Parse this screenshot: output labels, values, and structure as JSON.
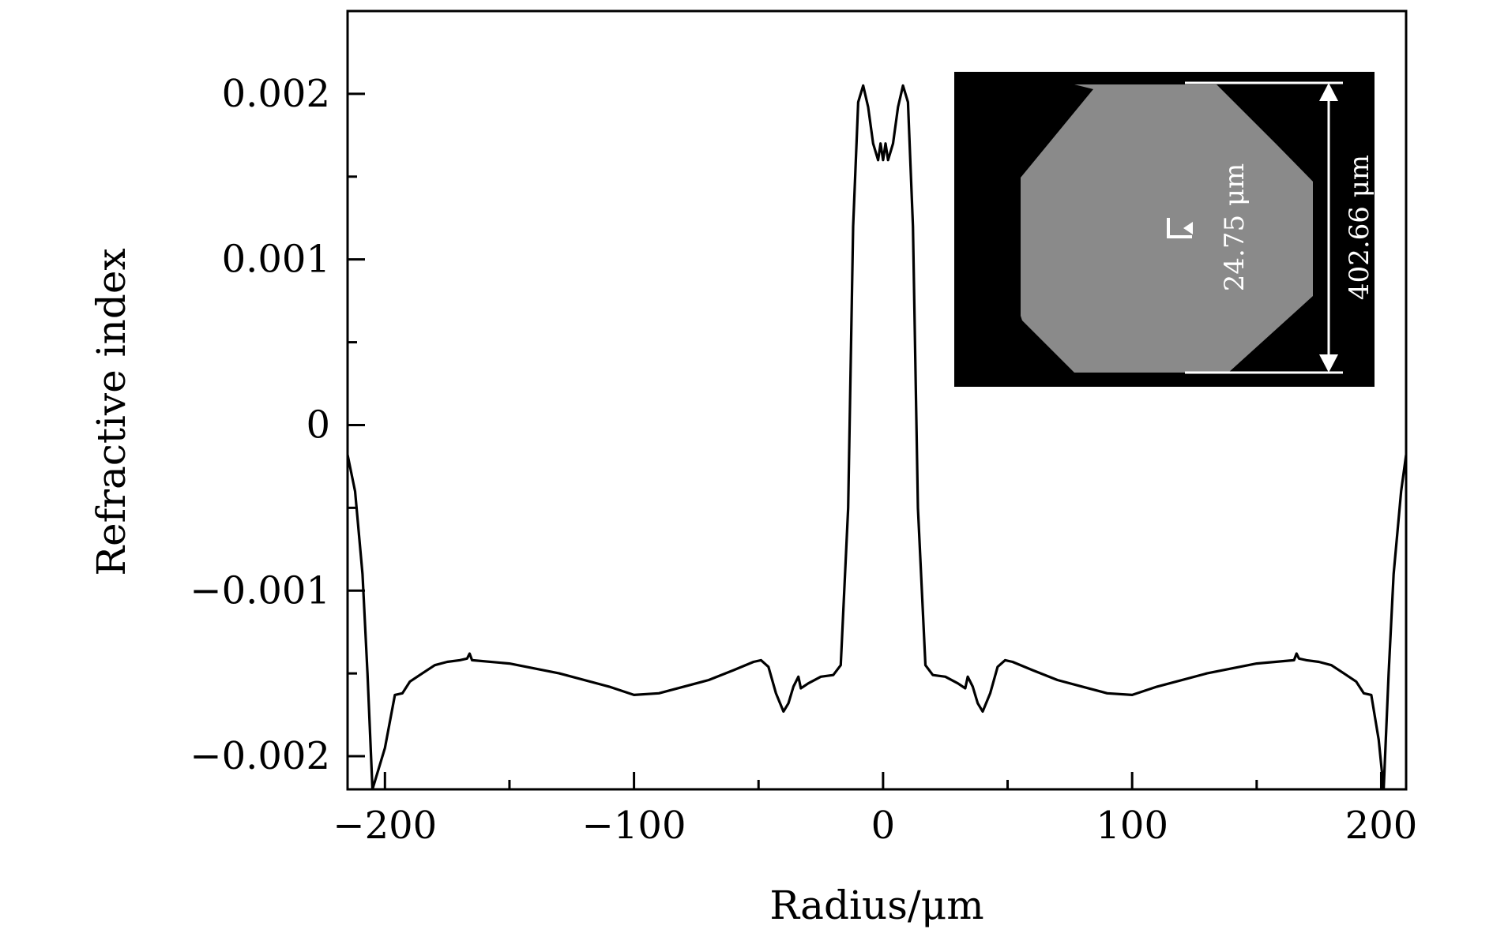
{
  "chart_data": {
    "type": "line",
    "title": "",
    "xlabel": "Radius/μm",
    "ylabel": "Refractive index",
    "xlim": [
      -215,
      210
    ],
    "ylim": [
      -0.0022,
      0.0025
    ],
    "x_ticks": [
      {
        "value": -200,
        "label": "−200"
      },
      {
        "value": -100,
        "label": "−100"
      },
      {
        "value": 0,
        "label": "0"
      },
      {
        "value": 100,
        "label": "100"
      },
      {
        "value": 200,
        "label": "200"
      }
    ],
    "y_ticks": [
      {
        "value": -0.002,
        "label": "−0.002"
      },
      {
        "value": -0.001,
        "label": "−0.001"
      },
      {
        "value": 0,
        "label": "0"
      },
      {
        "value": 0.001,
        "label": "0.001"
      },
      {
        "value": 0.002,
        "label": "0.002"
      }
    ],
    "grid": false,
    "series": [
      {
        "color": "#000000",
        "points": [
          [
            -215,
            -0.00018
          ],
          [
            -212,
            -0.0004
          ],
          [
            -209,
            -0.0009
          ],
          [
            -207,
            -0.0015
          ],
          [
            -205,
            -0.0022
          ],
          [
            -200,
            -0.00195
          ],
          [
            -196,
            -0.00163
          ],
          [
            -193,
            -0.00162
          ],
          [
            -190,
            -0.00155
          ],
          [
            -185,
            -0.0015
          ],
          [
            -180,
            -0.00145
          ],
          [
            -175,
            -0.00143
          ],
          [
            -170,
            -0.00142
          ],
          [
            -167,
            -0.00141
          ],
          [
            -166,
            -0.00138
          ],
          [
            -165,
            -0.00142
          ],
          [
            -150,
            -0.00144
          ],
          [
            -130,
            -0.0015
          ],
          [
            -110,
            -0.00158
          ],
          [
            -100,
            -0.00163
          ],
          [
            -90,
            -0.00162
          ],
          [
            -80,
            -0.00158
          ],
          [
            -70,
            -0.00154
          ],
          [
            -60,
            -0.00148
          ],
          [
            -52,
            -0.00143
          ],
          [
            -49,
            -0.00142
          ],
          [
            -46,
            -0.00146
          ],
          [
            -43,
            -0.00162
          ],
          [
            -40,
            -0.00173
          ],
          [
            -38,
            -0.00168
          ],
          [
            -36,
            -0.00158
          ],
          [
            -34,
            -0.00152
          ],
          [
            -33,
            -0.00159
          ],
          [
            -30,
            -0.00156
          ],
          [
            -25,
            -0.00152
          ],
          [
            -20,
            -0.00151
          ],
          [
            -17,
            -0.00145
          ],
          [
            -14,
            -0.0005
          ],
          [
            -12,
            0.0012
          ],
          [
            -10,
            0.00195
          ],
          [
            -8,
            0.00205
          ],
          [
            -6,
            0.00192
          ],
          [
            -4,
            0.0017
          ],
          [
            -2,
            0.0016
          ],
          [
            -1,
            0.0017
          ],
          [
            0,
            0.0016
          ],
          [
            1,
            0.0017
          ],
          [
            2,
            0.0016
          ],
          [
            4,
            0.0017
          ],
          [
            6,
            0.00192
          ],
          [
            8,
            0.00205
          ],
          [
            10,
            0.00195
          ],
          [
            12,
            0.0012
          ],
          [
            14,
            -0.0005
          ],
          [
            17,
            -0.00145
          ],
          [
            20,
            -0.00151
          ],
          [
            25,
            -0.00152
          ],
          [
            30,
            -0.00156
          ],
          [
            33,
            -0.00159
          ],
          [
            34,
            -0.00152
          ],
          [
            36,
            -0.00158
          ],
          [
            38,
            -0.00168
          ],
          [
            40,
            -0.00173
          ],
          [
            43,
            -0.00162
          ],
          [
            46,
            -0.00146
          ],
          [
            49,
            -0.00142
          ],
          [
            52,
            -0.00143
          ],
          [
            60,
            -0.00148
          ],
          [
            70,
            -0.00154
          ],
          [
            80,
            -0.00158
          ],
          [
            90,
            -0.00162
          ],
          [
            100,
            -0.00163
          ],
          [
            110,
            -0.00158
          ],
          [
            130,
            -0.0015
          ],
          [
            150,
            -0.00144
          ],
          [
            165,
            -0.00142
          ],
          [
            166,
            -0.00138
          ],
          [
            167,
            -0.00141
          ],
          [
            170,
            -0.00142
          ],
          [
            175,
            -0.00143
          ],
          [
            180,
            -0.00145
          ],
          [
            185,
            -0.0015
          ],
          [
            190,
            -0.00155
          ],
          [
            193,
            -0.00162
          ],
          [
            196,
            -0.00163
          ],
          [
            199,
            -0.0019
          ],
          [
            201,
            -0.0022
          ],
          [
            203,
            -0.0015
          ],
          [
            205,
            -0.0009
          ],
          [
            208,
            -0.0004
          ],
          [
            210,
            -0.00018
          ]
        ]
      }
    ],
    "inset": {
      "core_label": "24.75 μm",
      "fiber_label": "402.66 μm",
      "background_color": "#000000",
      "fiber_color": "#8a8a8a"
    }
  }
}
